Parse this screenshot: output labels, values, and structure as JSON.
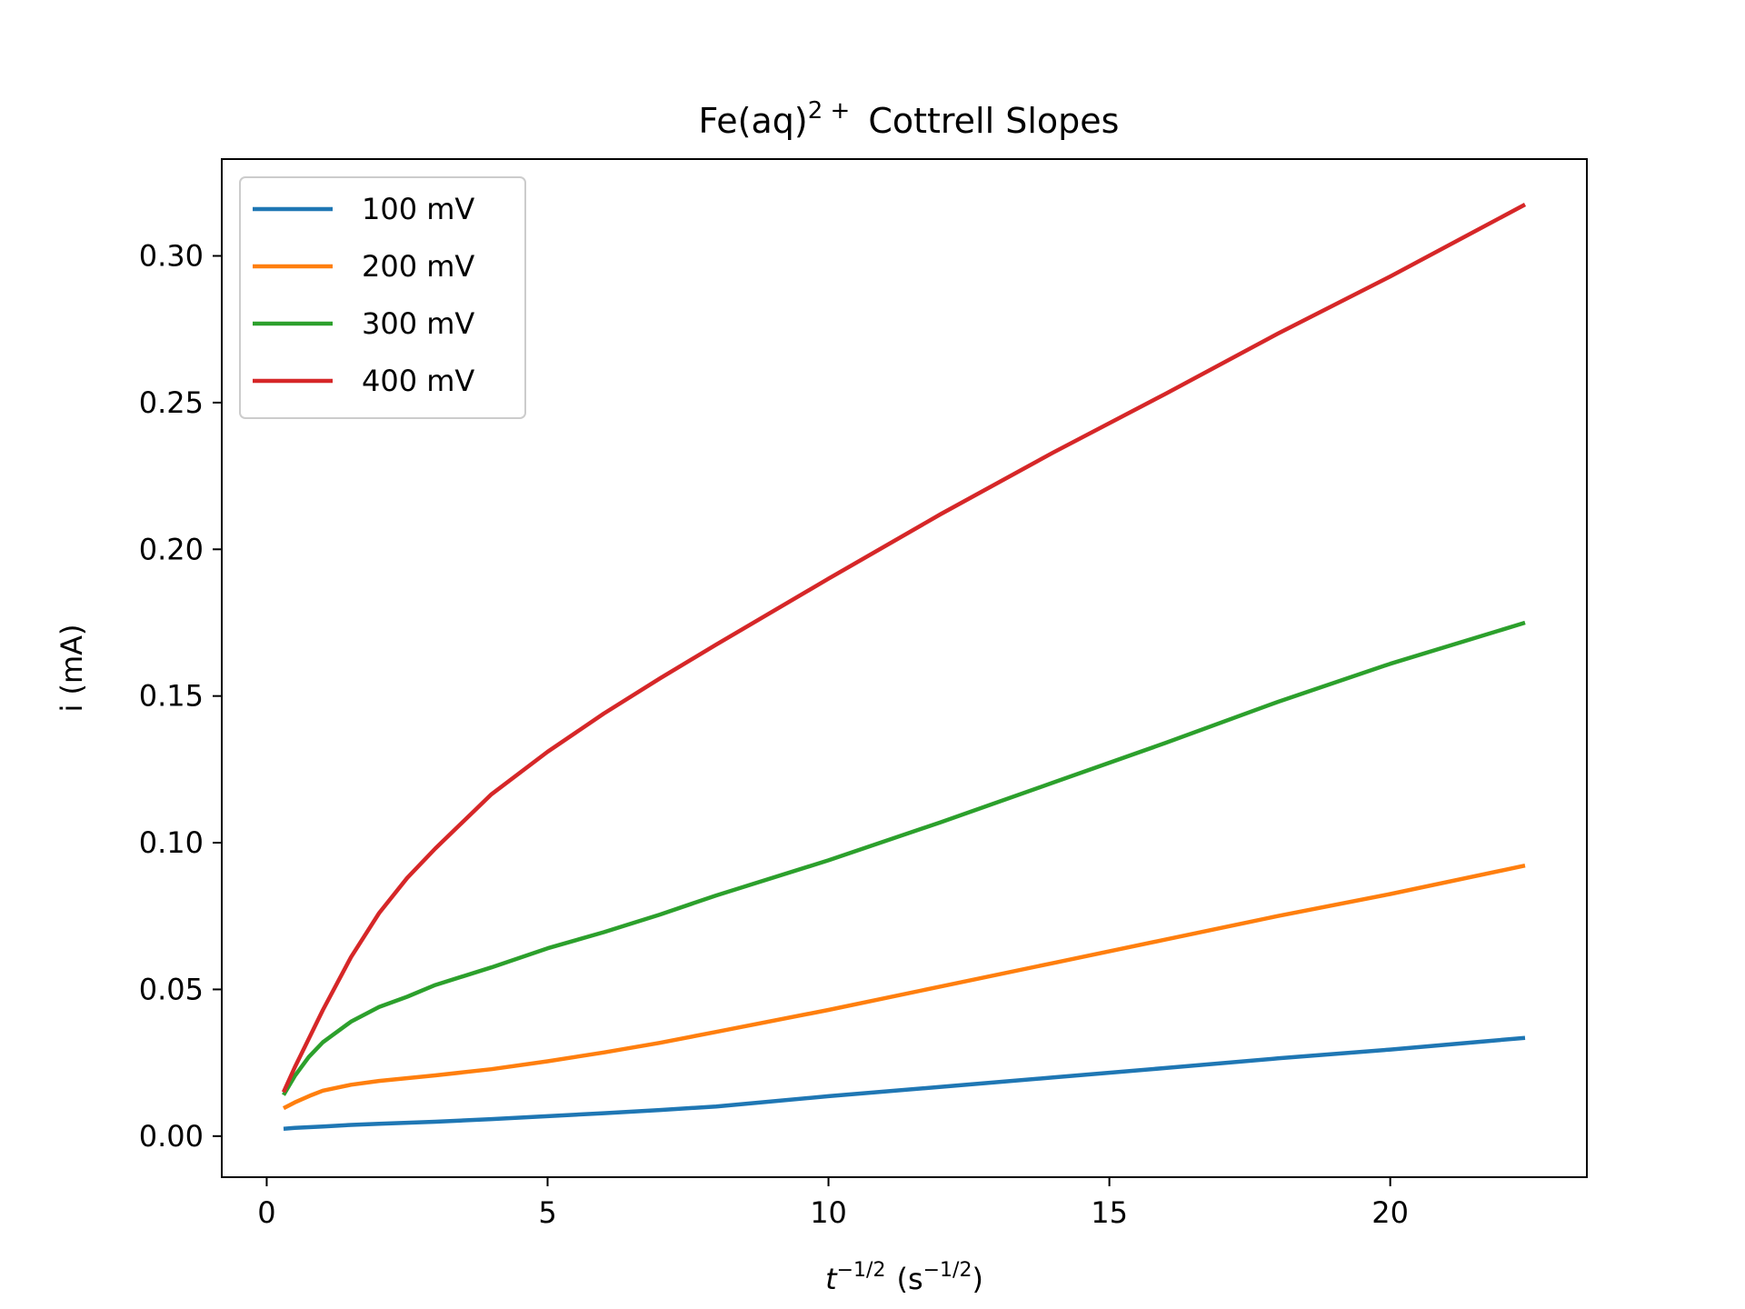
{
  "chart_data": {
    "type": "line",
    "title": {
      "main": "Fe(aq)",
      "sup": "2 +",
      "rest": "Cottrell Slopes"
    },
    "xlabel": {
      "var": "t",
      "var_sup": "−1/2",
      "unit_open": "(s",
      "unit_sup": "−1/2",
      "unit_close": ")"
    },
    "ylabel": "i (mA)",
    "xlim": [
      -0.8,
      23.5
    ],
    "ylim": [
      -0.014,
      0.333
    ],
    "xticks": [
      0,
      5,
      10,
      15,
      20
    ],
    "xtick_labels": [
      "0",
      "5",
      "10",
      "15",
      "20"
    ],
    "yticks": [
      0.0,
      0.05,
      0.1,
      0.15,
      0.2,
      0.25,
      0.3
    ],
    "ytick_labels": [
      "0.00",
      "0.05",
      "0.10",
      "0.15",
      "0.20",
      "0.25",
      "0.30"
    ],
    "grid": false,
    "legend_position": "upper-left",
    "series": [
      {
        "name": "100 mV",
        "color": "#1f77b4",
        "x": [
          0.3,
          0.5,
          1,
          1.5,
          2,
          3,
          4,
          5,
          6,
          7,
          8,
          10,
          12,
          14,
          16,
          18,
          20,
          22.4
        ],
        "y": [
          0.0025,
          0.0028,
          0.0033,
          0.0038,
          0.0042,
          0.0049,
          0.0058,
          0.0068,
          0.0078,
          0.0089,
          0.0101,
          0.0136,
          0.0168,
          0.02,
          0.0232,
          0.0265,
          0.0295,
          0.0335
        ]
      },
      {
        "name": "200 mV",
        "color": "#ff7f0e",
        "x": [
          0.3,
          0.5,
          0.8,
          1,
          1.5,
          2,
          3,
          4,
          5,
          6,
          7,
          8,
          10,
          12,
          14,
          16,
          18,
          20,
          22.4
        ],
        "y": [
          0.0095,
          0.0115,
          0.014,
          0.0155,
          0.0175,
          0.0188,
          0.0207,
          0.0228,
          0.0255,
          0.0285,
          0.0318,
          0.0355,
          0.043,
          0.051,
          0.059,
          0.067,
          0.075,
          0.0825,
          0.0922
        ]
      },
      {
        "name": "300 mV",
        "color": "#2ca02c",
        "x": [
          0.3,
          0.5,
          0.75,
          1,
          1.5,
          2,
          2.5,
          3,
          4,
          5,
          6,
          7,
          8,
          10,
          12,
          14,
          16,
          18,
          20,
          22.4
        ],
        "y": [
          0.014,
          0.0205,
          0.027,
          0.032,
          0.039,
          0.044,
          0.0475,
          0.0515,
          0.0575,
          0.064,
          0.0695,
          0.0755,
          0.082,
          0.094,
          0.107,
          0.1205,
          0.134,
          0.148,
          0.161,
          0.175
        ]
      },
      {
        "name": "400 mV",
        "color": "#d62728",
        "x": [
          0.3,
          0.5,
          1,
          1.5,
          2,
          2.5,
          3,
          4,
          5,
          6,
          7,
          8,
          10,
          12,
          14,
          16,
          18,
          20,
          22.4
        ],
        "y": [
          0.015,
          0.0235,
          0.043,
          0.061,
          0.076,
          0.088,
          0.098,
          0.1165,
          0.131,
          0.144,
          0.156,
          0.1675,
          0.19,
          0.212,
          0.233,
          0.253,
          0.2735,
          0.293,
          0.3175
        ]
      }
    ]
  }
}
